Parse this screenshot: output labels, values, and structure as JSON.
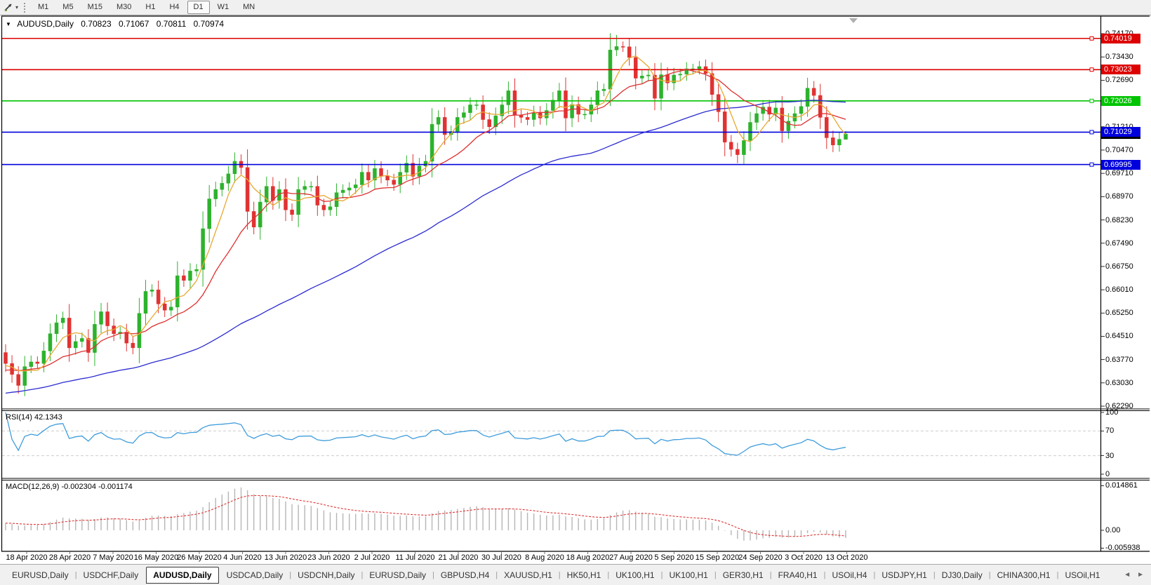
{
  "toolbar": {
    "dropdown_icon": "▾",
    "timeframes": [
      "M1",
      "M5",
      "M15",
      "M30",
      "H1",
      "H4",
      "D1",
      "W1",
      "MN"
    ],
    "active_timeframe": "D1"
  },
  "chart_window": {
    "collapse_icon": "▼",
    "title": "AUDUSD,Daily",
    "open": "0.70823",
    "high": "0.71067",
    "low": "0.70811",
    "close": "0.70974"
  },
  "price_axis": {
    "labels": [
      "0.74170",
      "0.73430",
      "0.72690",
      "0.71950",
      "0.71210",
      "0.70470",
      "0.69710",
      "0.68970",
      "0.68230",
      "0.67490",
      "0.66750",
      "0.66010",
      "0.65250",
      "0.64510",
      "0.63770",
      "0.63030",
      "0.62290"
    ]
  },
  "levels": [
    {
      "label": "0.74019",
      "price": 0.74019,
      "color": "#dd0000"
    },
    {
      "label": "0.73023",
      "price": 0.73023,
      "color": "#dd0000"
    },
    {
      "label": "0.72026",
      "price": 0.72026,
      "color": "#00c400"
    },
    {
      "label": "0.71029",
      "price": 0.71029,
      "color": "#0000dd"
    },
    {
      "label": "0.69995",
      "price": 0.69995,
      "color": "#0000dd"
    }
  ],
  "current_price": {
    "label": "0.70974",
    "price": 0.70974,
    "bg": "#000000"
  },
  "rsi_pane": {
    "label": "RSI(14) 42.1343",
    "period": 14,
    "value": 42.1343,
    "axis_labels": [
      {
        "text": "100",
        "value": 100
      },
      {
        "text": "70",
        "value": 70
      },
      {
        "text": "30",
        "value": 30
      },
      {
        "text": "0",
        "value": 0
      }
    ],
    "dashed_levels": [
      70,
      30
    ],
    "line_color": "#3e9cdb"
  },
  "macd_pane": {
    "label": "MACD(12,26,9) -0.002304 -0.001174",
    "fast": 12,
    "slow": 26,
    "signal": 9,
    "macd_value": -0.002304,
    "signal_value": -0.001174,
    "axis_labels": [
      {
        "text": "0.014861",
        "value": 0.014861
      },
      {
        "text": "0.00",
        "value": 0
      },
      {
        "text": "-0.005938",
        "value": -0.005938
      }
    ],
    "histogram_color": "#b6b6b6",
    "signal_color": "#e03232"
  },
  "time_axis": {
    "labels": [
      "18 Apr 2020",
      "28 Apr 2020",
      "7 May 2020",
      "16 May 2020",
      "26 May 2020",
      "4 Jun 2020",
      "13 Jun 2020",
      "23 Jun 2020",
      "2 Jul 2020",
      "11 Jul 2020",
      "21 Jul 2020",
      "30 Jul 2020",
      "8 Aug 2020",
      "18 Aug 2020",
      "27 Aug 2020",
      "5 Sep 2020",
      "15 Sep 2020",
      "24 Sep 2020",
      "3 Oct 2020",
      "13 Oct 2020"
    ]
  },
  "tab_bar": {
    "tabs": [
      "EURUSD,Daily",
      "USDCHF,Daily",
      "AUDUSD,Daily",
      "USDCAD,Daily",
      "USDCNH,Daily",
      "EURUSD,Daily",
      "GBPUSD,H4",
      "XAUUSD,H1",
      "HK50,H1",
      "UK100,H1",
      "UK100,H1",
      "GER30,H1",
      "FRA40,H1",
      "USOil,H4",
      "USDJPY,H1",
      "DJ30,Daily",
      "CHINA300,H1",
      "USOil,H1"
    ],
    "active_index": 2,
    "scroll_left": "◄",
    "scroll_right": "►"
  },
  "chart_data": {
    "type": "candlestick",
    "symbol": "AUDUSD",
    "timeframe": "Daily",
    "last_candle": {
      "open": 0.70823,
      "high": 0.71067,
      "low": 0.70811,
      "close": 0.70974
    },
    "price_axis_top": 0.7417,
    "price_axis_bottom": 0.6229,
    "first_open": 0.64,
    "closes": [
      0.6365,
      0.633,
      0.6295,
      0.6355,
      0.637,
      0.6365,
      0.6405,
      0.646,
      0.6495,
      0.651,
      0.6415,
      0.6435,
      0.6445,
      0.64,
      0.649,
      0.653,
      0.6485,
      0.646,
      0.6465,
      0.643,
      0.6415,
      0.6525,
      0.6595,
      0.66,
      0.6555,
      0.6535,
      0.6545,
      0.6645,
      0.663,
      0.666,
      0.6665,
      0.6795,
      0.689,
      0.692,
      0.694,
      0.697,
      0.701,
      0.699,
      0.685,
      0.68,
      0.688,
      0.693,
      0.6885,
      0.692,
      0.6855,
      0.684,
      0.692,
      0.693,
      0.693,
      0.687,
      0.6855,
      0.6865,
      0.691,
      0.6918,
      0.6925,
      0.6935,
      0.6975,
      0.695,
      0.6987,
      0.6963,
      0.695,
      0.6936,
      0.6975,
      0.7004,
      0.6962,
      0.6995,
      0.701,
      0.7128,
      0.715,
      0.7095,
      0.7105,
      0.715,
      0.7165,
      0.719,
      0.719,
      0.7143,
      0.712,
      0.7155,
      0.719,
      0.7235,
      0.7157,
      0.715,
      0.7143,
      0.7165,
      0.7148,
      0.7172,
      0.7205,
      0.7235,
      0.7148,
      0.7191,
      0.716,
      0.716,
      0.719,
      0.7235,
      0.724,
      0.7365,
      0.7376,
      0.7375,
      0.7341,
      0.7275,
      0.7282,
      0.7285,
      0.7211,
      0.7286,
      0.726,
      0.7285,
      0.7288,
      0.7305,
      0.7305,
      0.7312,
      0.729,
      0.7223,
      0.7168,
      0.7071,
      0.7048,
      0.7031,
      0.7076,
      0.7134,
      0.7162,
      0.7183,
      0.716,
      0.718,
      0.7107,
      0.7138,
      0.7162,
      0.7185,
      0.7243,
      0.722,
      0.715,
      0.7085,
      0.7062,
      0.708,
      0.7097
    ],
    "high_overrides": {
      "96": 0.7413,
      "97": 0.7392,
      "132": 0.71067
    },
    "low_overrides": {
      "39": 0.6777,
      "115": 0.7004,
      "132": 0.70811
    },
    "bull_color": "#2db22d",
    "bear_color": "#e03232",
    "moving_averages": [
      {
        "period": 5,
        "color": "#e8a832"
      },
      {
        "period": 13,
        "color": "#de3030"
      },
      {
        "period": 55,
        "color": "#2b2bd0"
      }
    ],
    "rsi": {
      "period": 14,
      "last": 42.1343
    },
    "macd": {
      "fast": 12,
      "slow": 26,
      "signal": 9,
      "last": -0.002304,
      "signal_last": -0.001174
    }
  }
}
